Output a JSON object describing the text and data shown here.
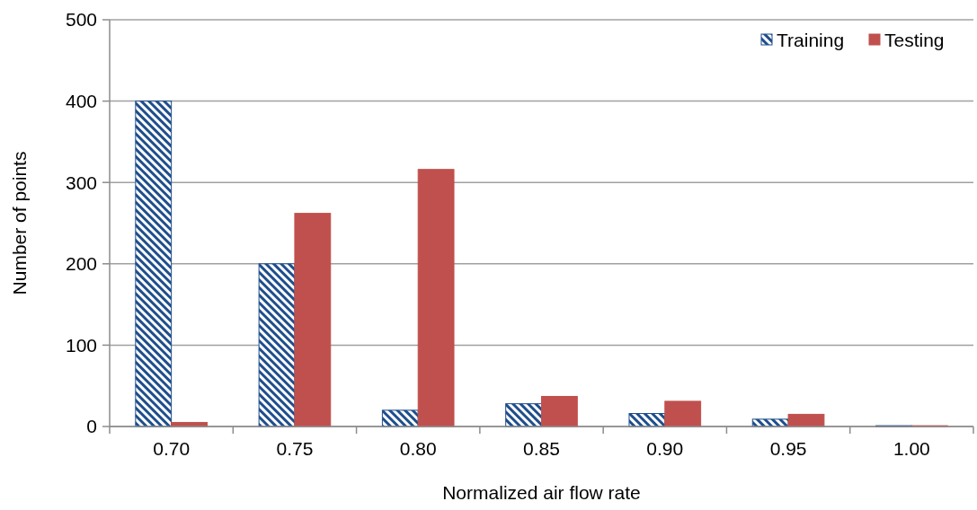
{
  "chart_data": {
    "type": "bar",
    "xlabel": "Normalized air flow rate",
    "ylabel": "Number of points",
    "categories": [
      "0.70",
      "0.75",
      "0.80",
      "0.85",
      "0.90",
      "0.95",
      "1.00"
    ],
    "series": [
      {
        "name": "Training",
        "color": "#1f4e8c",
        "values": [
          400,
          200,
          20,
          28,
          16,
          9,
          1
        ]
      },
      {
        "name": "Testing",
        "color": "#c0504d",
        "values": [
          5,
          262,
          316,
          37,
          31,
          15,
          1
        ]
      }
    ],
    "ylim": [
      0,
      500
    ],
    "yticks": [
      0,
      100,
      200,
      300,
      400,
      500
    ],
    "grid": "y",
    "legend": "top right"
  }
}
